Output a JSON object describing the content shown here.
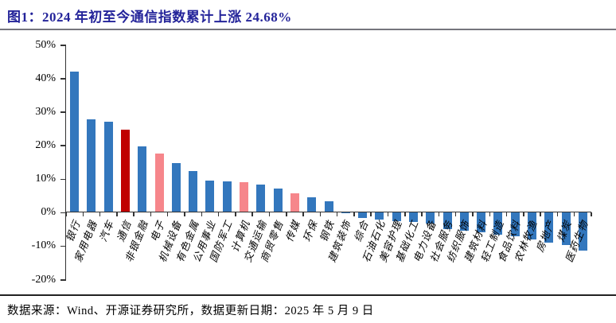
{
  "title": "图1：2024 年初至今通信指数累计上涨 24.68%",
  "footer": "数据来源：Wind、开源证券研究所，数据更新日期：2025 年 5 月 9 日",
  "chart_data": {
    "type": "bar",
    "title": "2024 年初至今通信指数累计上涨 24.68%",
    "xlabel": "",
    "ylabel": "",
    "ylim": [
      -20,
      50
    ],
    "y_tick_step": 10,
    "y_tick_labels": [
      "50%",
      "40%",
      "30%",
      "20%",
      "10%",
      "0%",
      "-10%",
      "-20%"
    ],
    "grid": false,
    "legend": false,
    "categories": [
      "银行",
      "家用电器",
      "汽车",
      "通信",
      "非银金融",
      "电子",
      "机械设备",
      "有色金属",
      "公用事业",
      "国防军工",
      "计算机",
      "交通运输",
      "商贸零售",
      "传媒",
      "环保",
      "钢铁",
      "建筑装饰",
      "综合",
      "石油石化",
      "美容护理",
      "基础化工",
      "电力设备",
      "社会服务",
      "纺织服饰",
      "建筑材料",
      "轻工制造",
      "食品饮料",
      "农林牧渔",
      "房地产",
      "煤炭",
      "医药生物"
    ],
    "values": [
      41.9,
      27.8,
      27.0,
      24.68,
      19.7,
      17.4,
      14.6,
      12.3,
      9.5,
      9.3,
      9.0,
      8.3,
      7.1,
      5.6,
      4.4,
      3.3,
      -0.1,
      -1.5,
      -2.0,
      -2.4,
      -2.7,
      -3.1,
      -4.8,
      -5.3,
      -5.9,
      -6.5,
      -6.9,
      -8.0,
      -8.9,
      -9.7,
      -11.2
    ],
    "color_roles": [
      "normal",
      "normal",
      "normal",
      "highlight",
      "normal",
      "secondary",
      "normal",
      "normal",
      "normal",
      "normal",
      "secondary",
      "normal",
      "normal",
      "secondary",
      "normal",
      "normal",
      "normal",
      "normal",
      "normal",
      "normal",
      "normal",
      "normal",
      "normal",
      "normal",
      "normal",
      "normal",
      "normal",
      "normal",
      "normal",
      "normal",
      "normal"
    ],
    "bar_colors": {
      "normal": "#3377BD",
      "highlight": "#C00000",
      "secondary": "#F6868B"
    },
    "highlighted_category": "通信",
    "highlighted_value_pct": 24.68
  }
}
